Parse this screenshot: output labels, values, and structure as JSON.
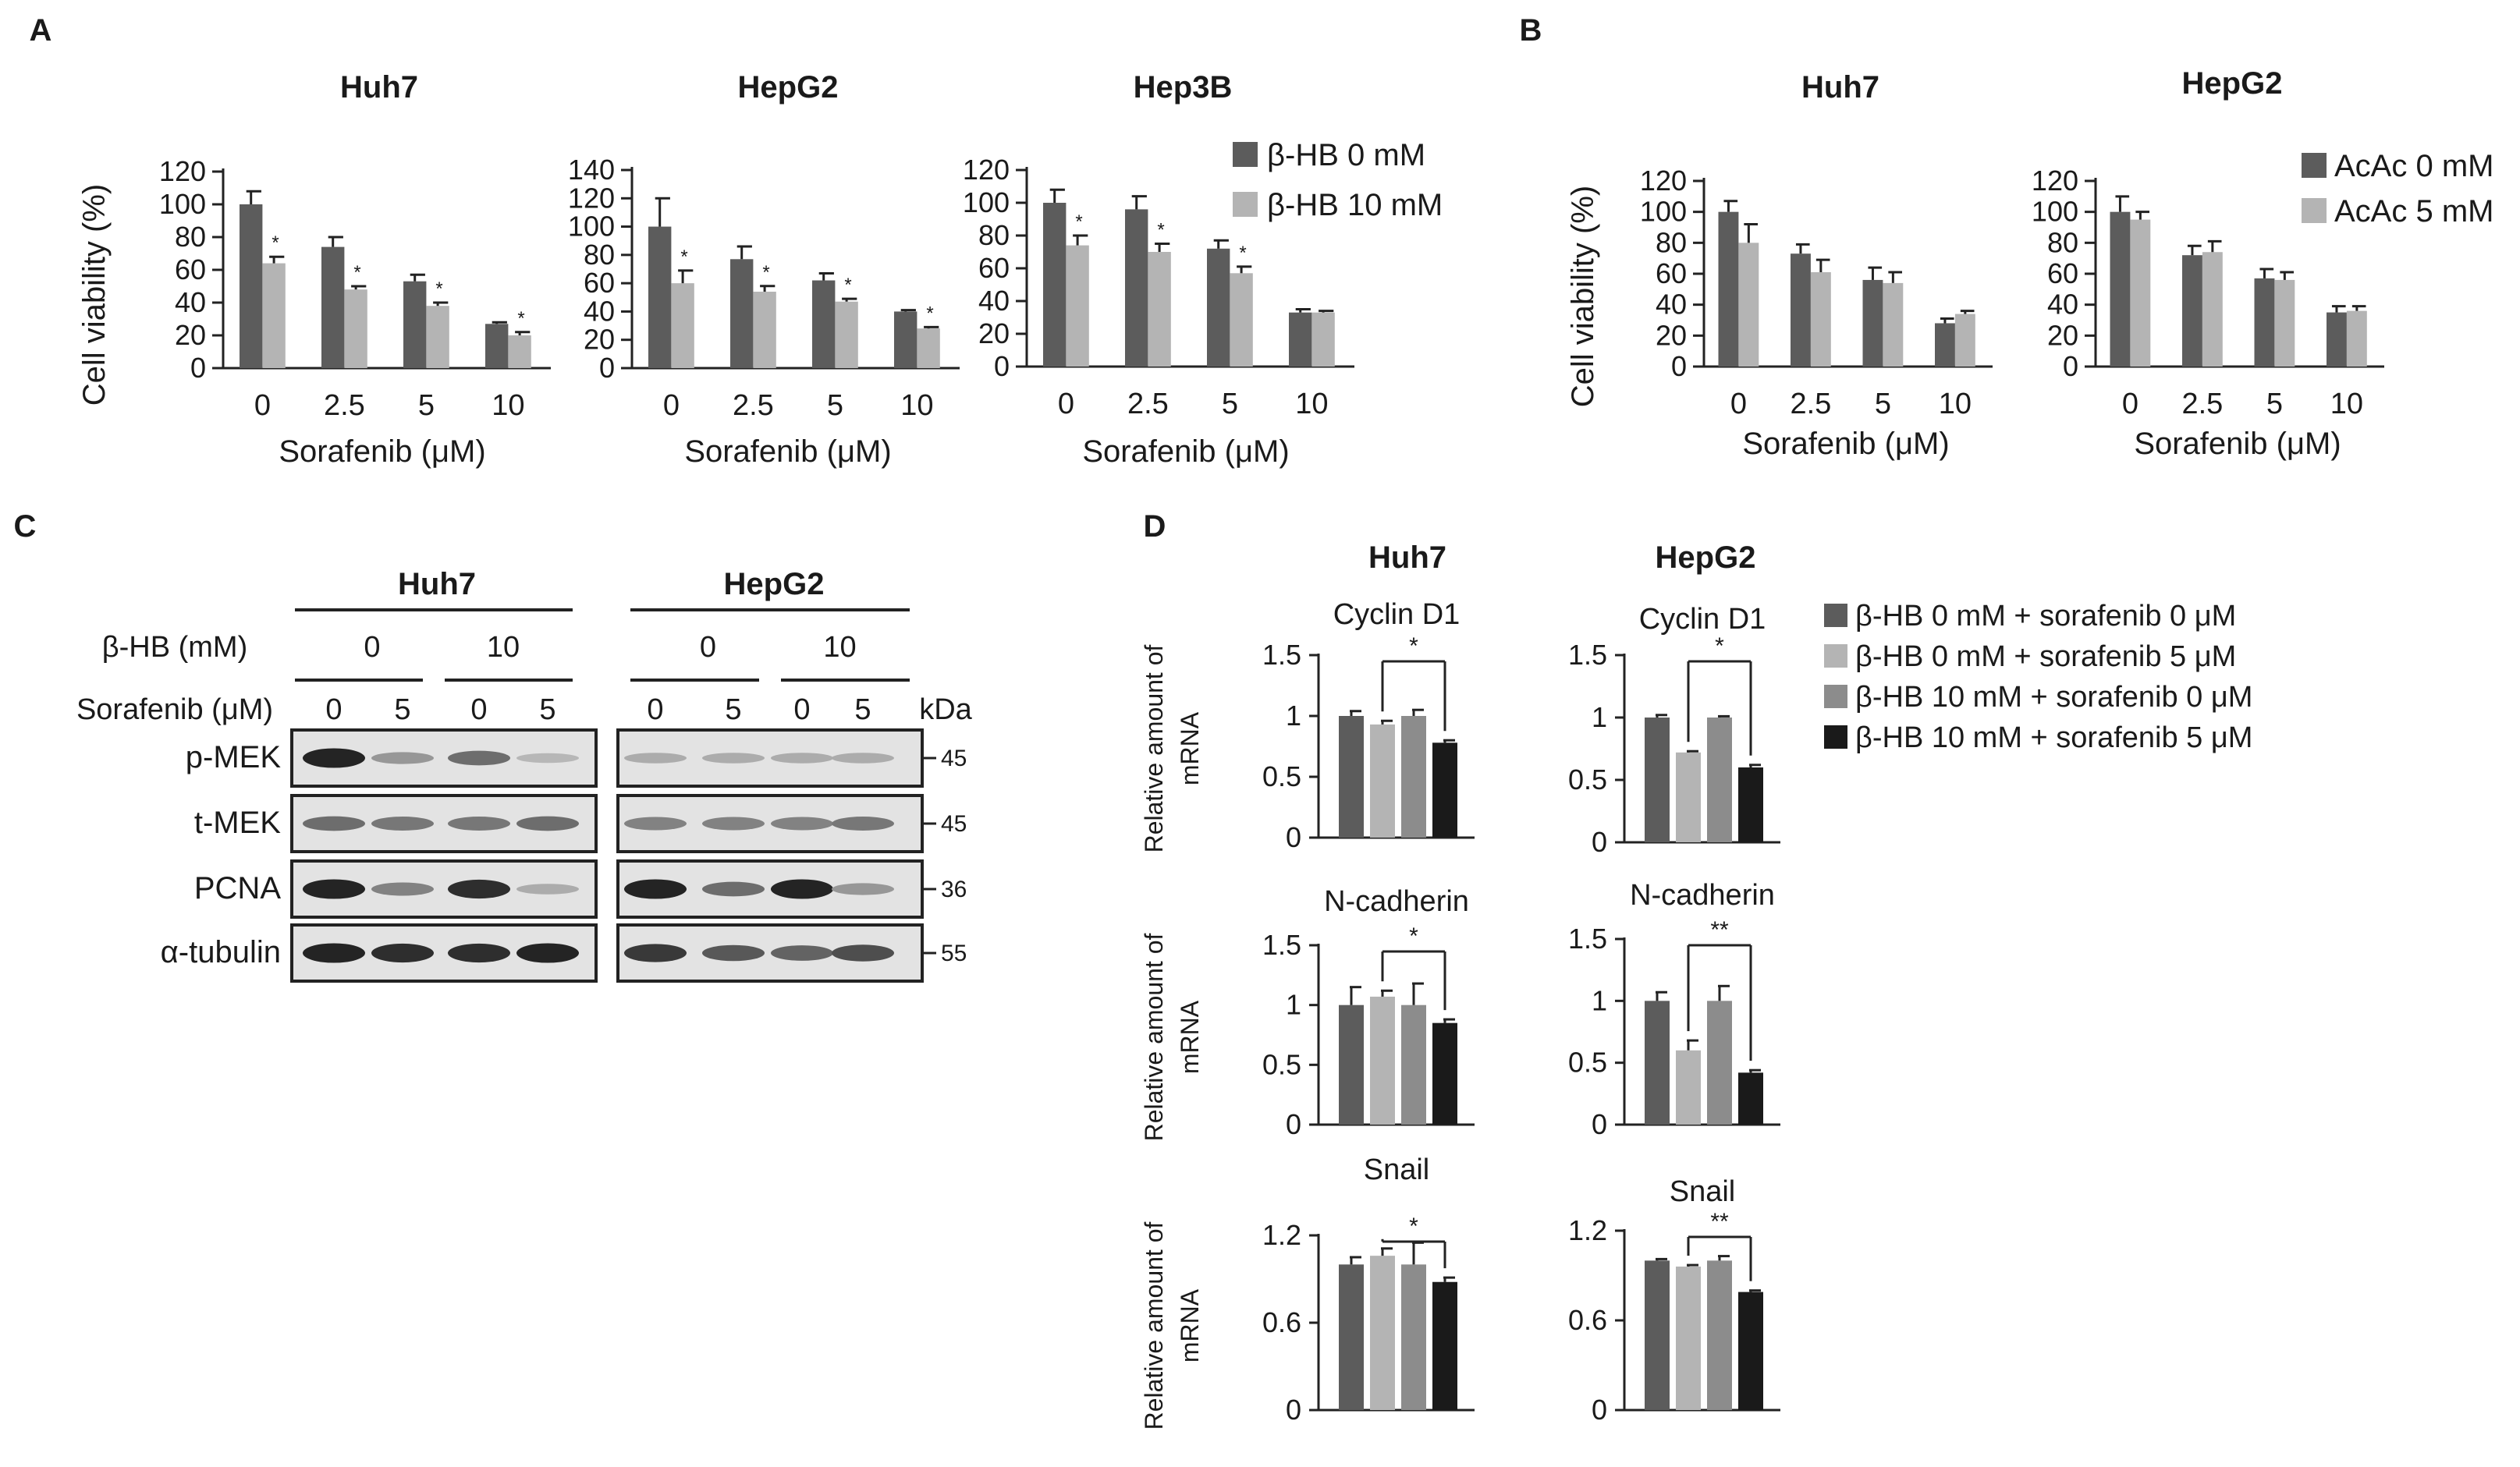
{
  "panels": {
    "A": "A",
    "B": "B",
    "C": "C",
    "D": "D"
  },
  "viability_ylabel": "Cell viability (%)",
  "sorafenib_xlabel": "Sorafenib (μM)",
  "doses": [
    "0",
    "2.5",
    "5",
    "10"
  ],
  "colors": {
    "dark": "#5c5c5c",
    "light": "#b4b4b4",
    "mid": "#8c8c8c",
    "black": "#1a1a1a"
  },
  "chart_data": [
    {
      "id": "A-Huh7",
      "type": "bar",
      "title": "Huh7",
      "ylim": [
        0,
        120
      ],
      "yticks": [
        0,
        20,
        40,
        60,
        80,
        100,
        120
      ],
      "categories": [
        "0",
        "2.5",
        "5",
        "10"
      ],
      "series": [
        {
          "name": "β-HB 0 mM",
          "values": [
            100,
            74,
            53,
            27
          ],
          "err": [
            8,
            6,
            4,
            1
          ]
        },
        {
          "name": "β-HB 10 mM",
          "values": [
            64,
            48,
            38,
            20
          ],
          "err": [
            4,
            2,
            2,
            2
          ]
        }
      ],
      "stars": [
        "*",
        "*",
        "*",
        "*"
      ]
    },
    {
      "id": "A-HepG2",
      "type": "bar",
      "title": "HepG2",
      "ylim": [
        0,
        140
      ],
      "yticks": [
        0,
        20,
        40,
        60,
        80,
        100,
        120,
        140
      ],
      "categories": [
        "0",
        "2.5",
        "5",
        "10"
      ],
      "series": [
        {
          "name": "β-HB 0 mM",
          "values": [
            100,
            77,
            62,
            40
          ],
          "err": [
            20,
            9,
            5,
            1
          ]
        },
        {
          "name": "β-HB 10 mM",
          "values": [
            60,
            54,
            47,
            28
          ],
          "err": [
            9,
            4,
            2,
            1
          ]
        }
      ],
      "stars": [
        "*",
        "*",
        "*",
        "*"
      ]
    },
    {
      "id": "A-Hep3B",
      "type": "bar",
      "title": "Hep3B",
      "ylim": [
        0,
        120
      ],
      "yticks": [
        0,
        20,
        40,
        60,
        80,
        100,
        120
      ],
      "categories": [
        "0",
        "2.5",
        "5",
        "10"
      ],
      "series": [
        {
          "name": "β-HB 0 mM",
          "values": [
            100,
            96,
            72,
            33
          ],
          "err": [
            8,
            8,
            5,
            2
          ]
        },
        {
          "name": "β-HB 10 mM",
          "values": [
            74,
            70,
            57,
            33
          ],
          "err": [
            6,
            5,
            4,
            1
          ]
        }
      ],
      "stars": [
        "*",
        "*",
        "*",
        ""
      ]
    },
    {
      "id": "B-Huh7",
      "type": "bar",
      "title": "Huh7",
      "ylim": [
        0,
        120
      ],
      "yticks": [
        0,
        20,
        40,
        60,
        80,
        100,
        120
      ],
      "categories": [
        "0",
        "2.5",
        "5",
        "10"
      ],
      "series": [
        {
          "name": "AcAc 0 mM",
          "values": [
            100,
            73,
            56,
            28
          ],
          "err": [
            7,
            6,
            8,
            3
          ]
        },
        {
          "name": "AcAc 5 mM",
          "values": [
            80,
            61,
            54,
            34
          ],
          "err": [
            12,
            8,
            7,
            2
          ]
        }
      ]
    },
    {
      "id": "B-HepG2",
      "type": "bar",
      "title": "HepG2",
      "ylim": [
        0,
        120
      ],
      "yticks": [
        0,
        20,
        40,
        60,
        80,
        100,
        120
      ],
      "categories": [
        "0",
        "2.5",
        "5",
        "10"
      ],
      "series": [
        {
          "name": "AcAc 0 mM",
          "values": [
            100,
            72,
            57,
            35
          ],
          "err": [
            10,
            6,
            6,
            4
          ]
        },
        {
          "name": "AcAc 5 mM",
          "values": [
            95,
            74,
            56,
            36
          ],
          "err": [
            5,
            7,
            5,
            3
          ]
        }
      ]
    },
    {
      "id": "D-Huh7-CyclinD1",
      "type": "bar",
      "title": "Cyclin D1",
      "ylim": [
        0,
        1.5
      ],
      "yticks": [
        "0",
        "0.5",
        "1",
        "1.5"
      ],
      "values": [
        1.0,
        0.93,
        1.0,
        0.78
      ],
      "err": [
        0.04,
        0.03,
        0.05,
        0.02
      ],
      "sig": "*"
    },
    {
      "id": "D-HepG2-CyclinD1",
      "type": "bar",
      "title": "Cyclin D1",
      "ylim": [
        0,
        1.5
      ],
      "yticks": [
        "0",
        "0.5",
        "1",
        "1.5"
      ],
      "values": [
        1.0,
        0.72,
        1.0,
        0.6
      ],
      "err": [
        0.02,
        0.01,
        0.01,
        0.02
      ],
      "sig": "*"
    },
    {
      "id": "D-Huh7-Ncad",
      "type": "bar",
      "title": "N-cadherin",
      "ylim": [
        0,
        1.5
      ],
      "yticks": [
        "0",
        "0.5",
        "1",
        "1.5"
      ],
      "values": [
        1.0,
        1.07,
        1.0,
        0.85
      ],
      "err": [
        0.15,
        0.05,
        0.18,
        0.03
      ],
      "sig": "*"
    },
    {
      "id": "D-HepG2-Ncad",
      "type": "bar",
      "title": "N-cadherin",
      "ylim": [
        0,
        1.5
      ],
      "yticks": [
        "0",
        "0.5",
        "1",
        "1.5"
      ],
      "values": [
        1.0,
        0.6,
        1.0,
        0.42
      ],
      "err": [
        0.07,
        0.08,
        0.12,
        0.02
      ],
      "sig": "**"
    },
    {
      "id": "D-Huh7-Snail",
      "type": "bar",
      "title": "Snail",
      "ylim": [
        0,
        1.2
      ],
      "yticks": [
        "0",
        "0.6",
        "1.2"
      ],
      "values": [
        1.0,
        1.06,
        1.0,
        0.88
      ],
      "err": [
        0.05,
        0.05,
        0.15,
        0.03
      ],
      "sig": "*"
    },
    {
      "id": "D-HepG2-Snail",
      "type": "bar",
      "title": "Snail",
      "ylim": [
        0,
        1.2
      ],
      "yticks": [
        "0",
        "0.6",
        "1.2"
      ],
      "values": [
        1.0,
        0.96,
        1.0,
        0.79
      ],
      "err": [
        0.01,
        0.01,
        0.03,
        0.01
      ],
      "sig": "**"
    }
  ],
  "legend_A": [
    "β-HB 0 mM",
    "β-HB 10 mM"
  ],
  "legend_B": [
    "AcAc 0 mM",
    "AcAc 5 mM"
  ],
  "legend_D": [
    "β-HB 0 mM + sorafenib 0 μM",
    "β-HB 0 mM + sorafenib 5 μM",
    "β-HB 10 mM + sorafenib 0 μM",
    "β-HB 10 mM + sorafenib 5 μM"
  ],
  "D_column_titles": [
    "Huh7",
    "HepG2"
  ],
  "D_ylabel": [
    "Relative amount of",
    "mRNA"
  ],
  "blot": {
    "groups": [
      "Huh7",
      "HepG2"
    ],
    "bhb_label": "β-HB (mM)",
    "bhb_values": [
      "0",
      "10"
    ],
    "sorafenib_label": "Sorafenib (μM)",
    "sorafenib_values": [
      "0",
      "5"
    ],
    "kda_label": "kDa",
    "rows": [
      {
        "name": "p-MEK",
        "kda": "45"
      },
      {
        "name": "t-MEK",
        "kda": "45"
      },
      {
        "name": "PCNA",
        "kda": "36"
      },
      {
        "name": "α-tubulin",
        "kda": "55"
      }
    ],
    "band_intensity": {
      "huh7": [
        [
          0.95,
          0.4,
          0.6,
          0.25
        ],
        [
          0.6,
          0.55,
          0.55,
          0.6
        ],
        [
          0.95,
          0.5,
          0.9,
          0.3
        ],
        [
          0.95,
          0.9,
          0.9,
          0.95
        ]
      ],
      "hepg2": [
        [
          0.3,
          0.3,
          0.3,
          0.3
        ],
        [
          0.5,
          0.5,
          0.5,
          0.55
        ],
        [
          0.95,
          0.6,
          0.95,
          0.4
        ],
        [
          0.85,
          0.7,
          0.65,
          0.75
        ]
      ]
    }
  }
}
